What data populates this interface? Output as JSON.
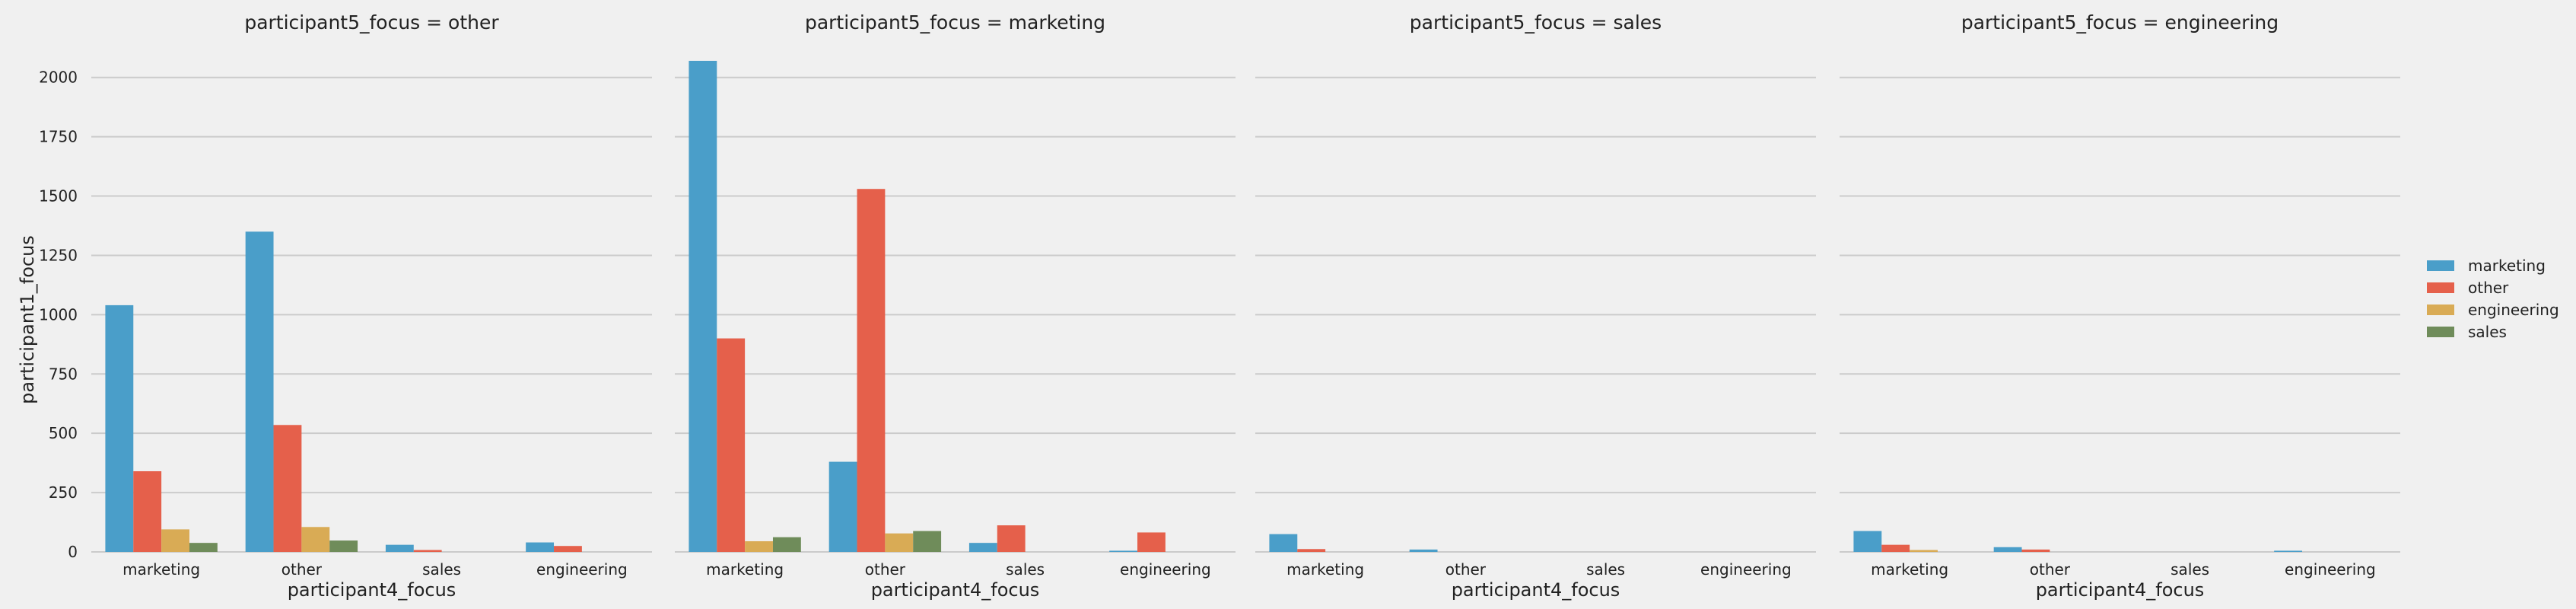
{
  "chart_data": {
    "type": "bar",
    "facet_variable": "participant5_focus",
    "categories": [
      "marketing",
      "other",
      "sales",
      "engineering"
    ],
    "xlabel": "participant4_focus",
    "ylabel": "participant1_focus",
    "ylim": [
      0,
      2150
    ],
    "yticks": [
      0,
      250,
      500,
      750,
      1000,
      1250,
      1500,
      1750,
      2000
    ],
    "grid": true,
    "legend_position": "right",
    "hue_order": [
      "marketing",
      "other",
      "engineering",
      "sales"
    ],
    "hue_colors": {
      "marketing": "#4a9ec9",
      "other": "#e5604b",
      "engineering": "#d9ab55",
      "sales": "#6f8c5a"
    },
    "panels": [
      {
        "title": "participant5_focus = other",
        "series": [
          {
            "name": "marketing",
            "values": [
              1040,
              1350,
              30,
              40
            ]
          },
          {
            "name": "other",
            "values": [
              340,
              535,
              8,
              25
            ]
          },
          {
            "name": "engineering",
            "values": [
              95,
              105,
              0,
              0
            ]
          },
          {
            "name": "sales",
            "values": [
              38,
              48,
              0,
              0
            ]
          }
        ]
      },
      {
        "title": "participant5_focus = marketing",
        "series": [
          {
            "name": "marketing",
            "values": [
              2070,
              380,
              38,
              5
            ]
          },
          {
            "name": "other",
            "values": [
              900,
              1530,
              112,
              82
            ]
          },
          {
            "name": "engineering",
            "values": [
              45,
              78,
              0,
              0
            ]
          },
          {
            "name": "sales",
            "values": [
              62,
              88,
              0,
              0
            ]
          }
        ]
      },
      {
        "title": "participant5_focus = sales",
        "series": [
          {
            "name": "marketing",
            "values": [
              75,
              10,
              0,
              0
            ]
          },
          {
            "name": "other",
            "values": [
              12,
              0,
              0,
              0
            ]
          },
          {
            "name": "engineering",
            "values": [
              0,
              0,
              0,
              0
            ]
          },
          {
            "name": "sales",
            "values": [
              0,
              0,
              0,
              0
            ]
          }
        ]
      },
      {
        "title": "participant5_focus = engineering",
        "series": [
          {
            "name": "marketing",
            "values": [
              88,
              20,
              0,
              5
            ]
          },
          {
            "name": "other",
            "values": [
              30,
              10,
              0,
              0
            ]
          },
          {
            "name": "engineering",
            "values": [
              8,
              0,
              0,
              0
            ]
          },
          {
            "name": "sales",
            "values": [
              0,
              0,
              0,
              0
            ]
          }
        ]
      }
    ],
    "legend": [
      "marketing",
      "other",
      "engineering",
      "sales"
    ]
  }
}
